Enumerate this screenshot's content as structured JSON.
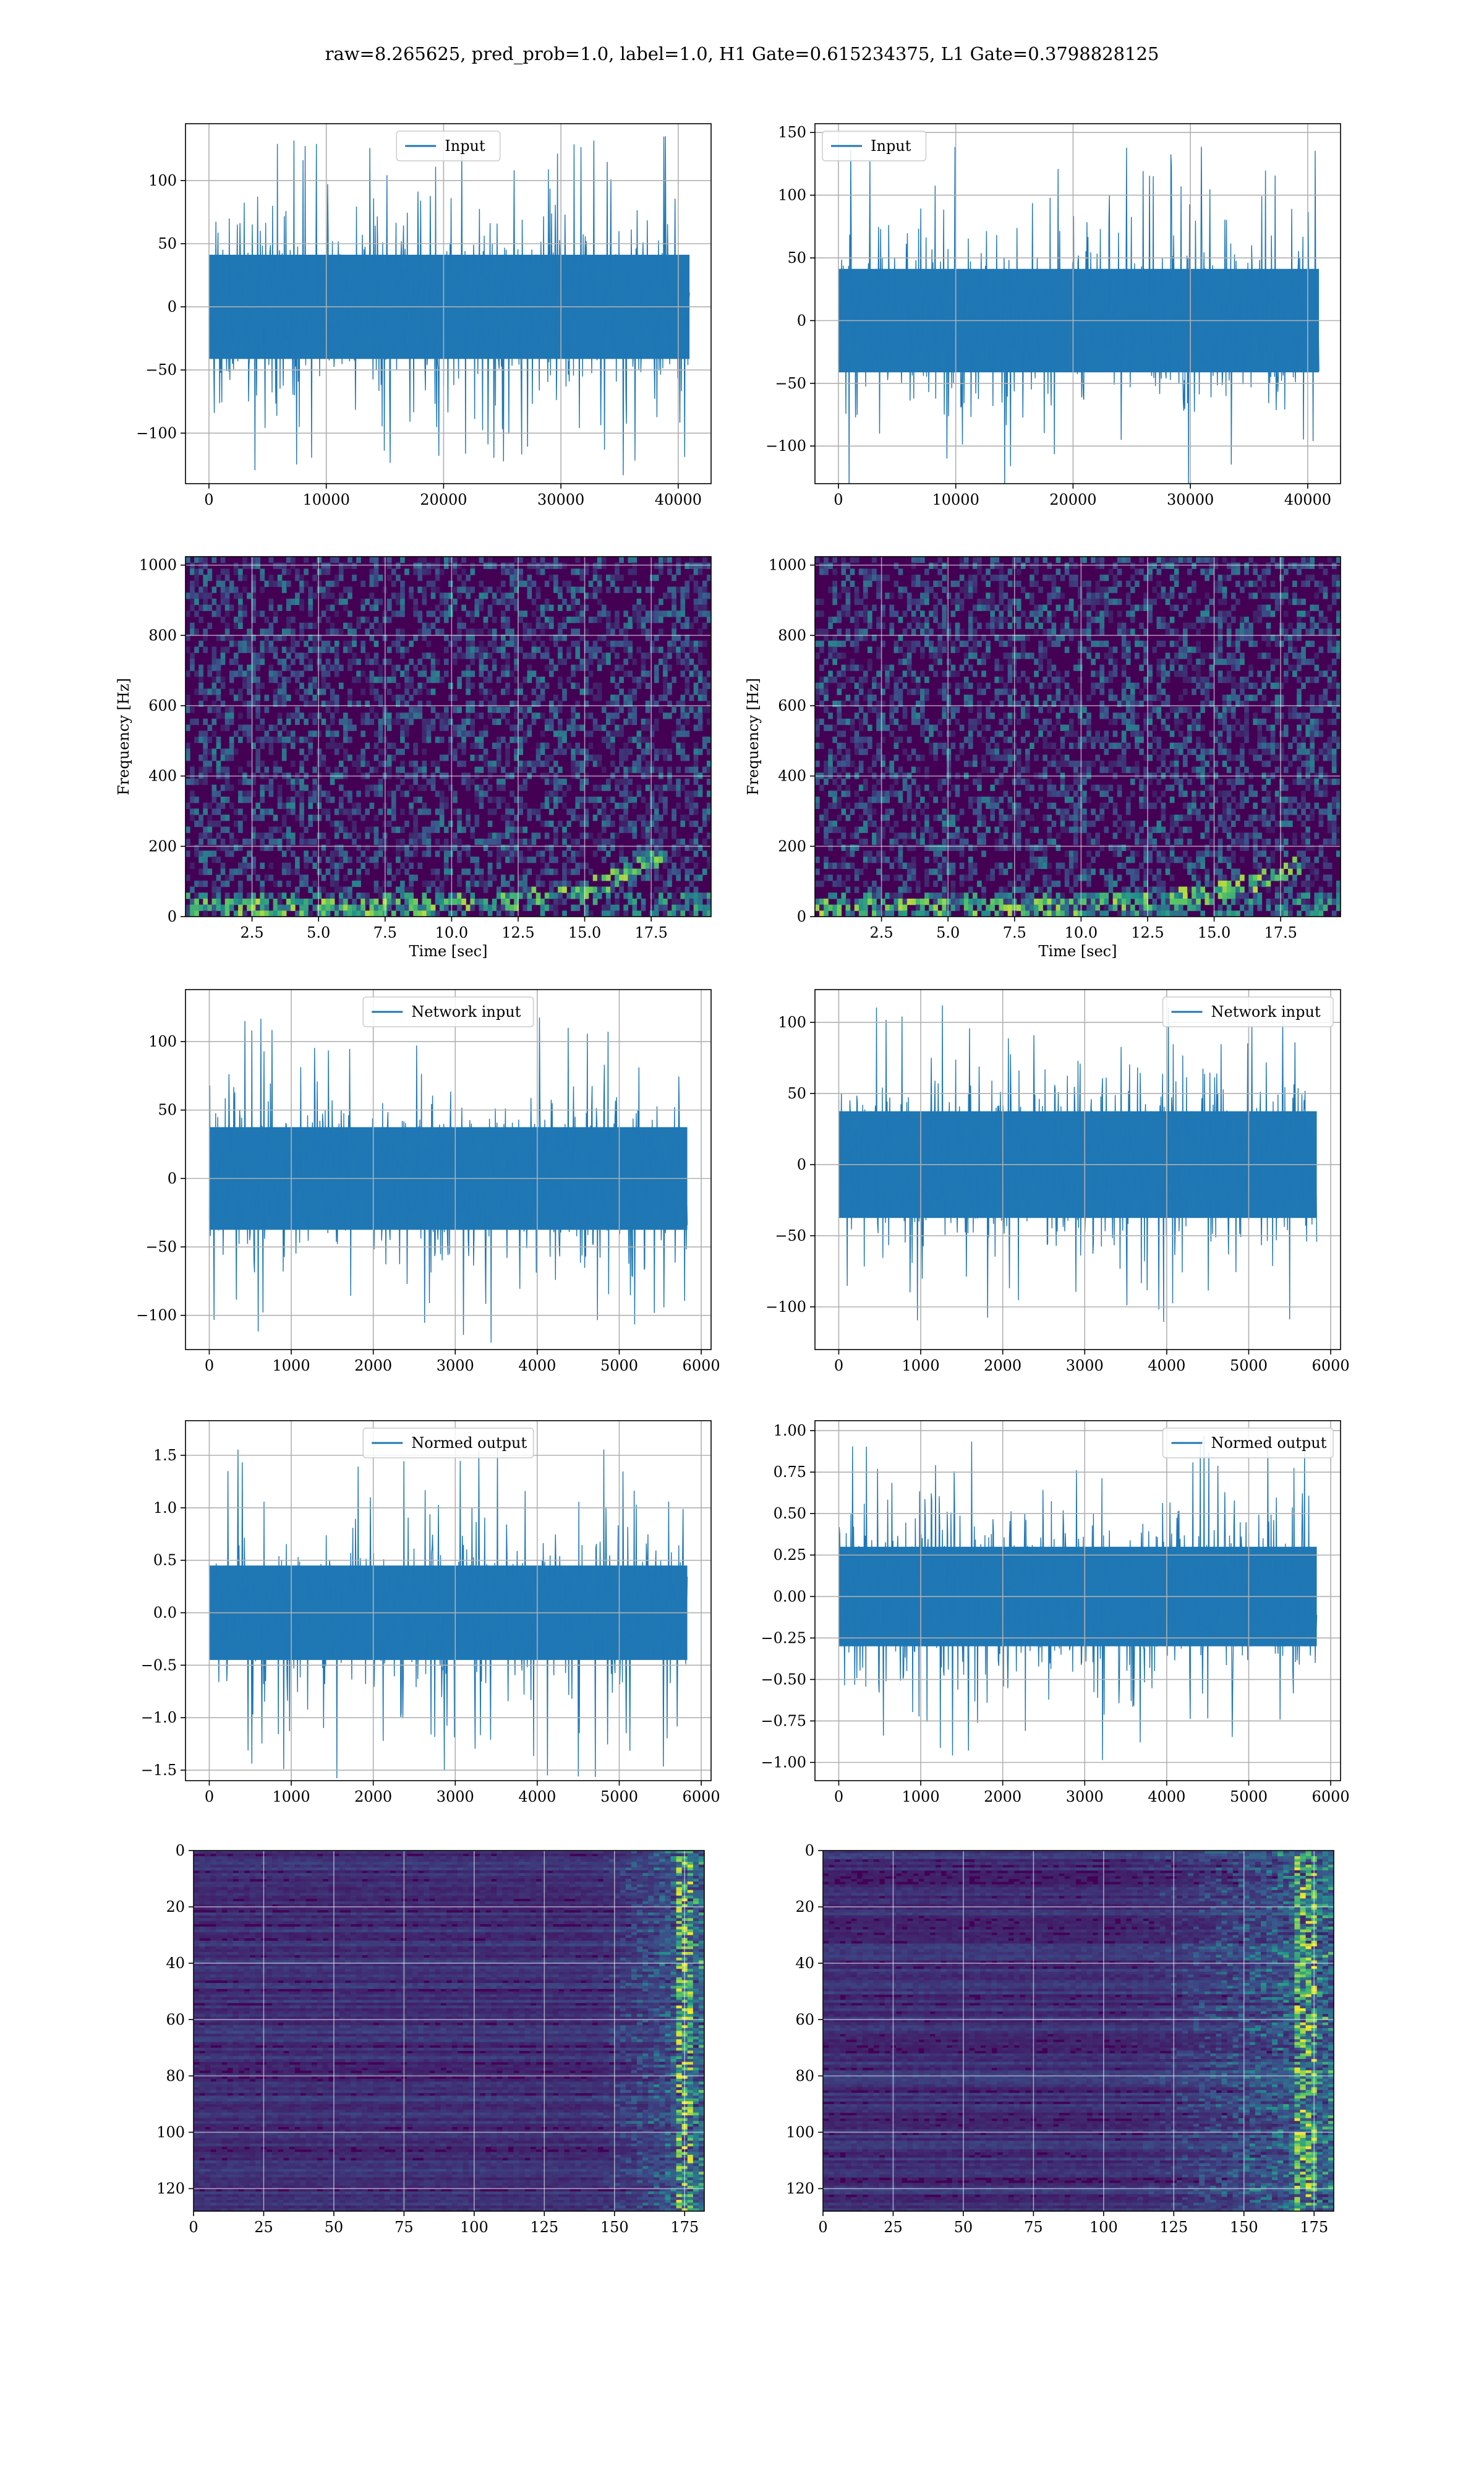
{
  "figure": {
    "title": "raw=8.265625, pred_prob=1.0, label=1.0, H1 Gate=0.615234375, L1 Gate=0.3798828125"
  },
  "colors": {
    "series": "#1f77b4",
    "grid": "#b0b0b0",
    "viridis_low": "#440154",
    "viridis_mid": "#31688e",
    "viridis_high": "#fde725"
  },
  "chart_data": [
    {
      "id": "h1-input",
      "type": "line",
      "legend": [
        "Input"
      ],
      "legend_loc": "upper center",
      "series": [
        {
          "name": "Input",
          "x_range": [
            0,
            40960
          ],
          "amp_typical": 55,
          "amp_max": 135,
          "seed": 11
        }
      ],
      "xlim": [
        -2000,
        42800
      ],
      "ylim": [
        -140,
        145
      ],
      "xticks": [
        0,
        10000,
        20000,
        30000,
        40000
      ],
      "xticklabels": [
        "0",
        "10000",
        "20000",
        "30000",
        "40000"
      ],
      "yticks": [
        -100,
        -50,
        0,
        50,
        100
      ],
      "yticklabels": [
        "−100",
        "−50",
        "0",
        "50",
        "100"
      ],
      "grid": true
    },
    {
      "id": "l1-input",
      "type": "line",
      "legend": [
        "Input"
      ],
      "legend_loc": "upper left",
      "series": [
        {
          "name": "Input",
          "x_range": [
            0,
            40960
          ],
          "amp_typical": 55,
          "amp_max": 140,
          "seed": 23
        }
      ],
      "xlim": [
        -2000,
        42800
      ],
      "ylim": [
        -130,
        157
      ],
      "xticks": [
        0,
        10000,
        20000,
        30000,
        40000
      ],
      "xticklabels": [
        "0",
        "10000",
        "20000",
        "30000",
        "40000"
      ],
      "yticks": [
        -100,
        -50,
        0,
        50,
        100,
        150
      ],
      "yticklabels": [
        "−100",
        "−50",
        "0",
        "50",
        "100",
        "150"
      ],
      "grid": true
    },
    {
      "id": "h1-spectrogram",
      "type": "heatmap",
      "xlabel": "Time [sec]",
      "ylabel": "Frequency [Hz]",
      "xlim": [
        0,
        19.75
      ],
      "ylim": [
        0,
        1024
      ],
      "xticks": [
        2.5,
        5.0,
        7.5,
        10.0,
        12.5,
        15.0,
        17.5
      ],
      "xticklabels": [
        "2.5",
        "5.0",
        "7.5",
        "10.0",
        "12.5",
        "15.0",
        "17.5"
      ],
      "yticks": [
        0,
        200,
        400,
        600,
        800,
        1000
      ],
      "yticklabels": [
        "0",
        "200",
        "400",
        "600",
        "800",
        "1000"
      ],
      "chirp": {
        "t_end": 18.0,
        "f_start": 30,
        "f_end": 180
      },
      "grid": true
    },
    {
      "id": "l1-spectrogram",
      "type": "heatmap",
      "xlabel": "Time [sec]",
      "ylabel": "Frequency [Hz]",
      "xlim": [
        0,
        19.75
      ],
      "ylim": [
        0,
        1024
      ],
      "xticks": [
        2.5,
        5.0,
        7.5,
        10.0,
        12.5,
        15.0,
        17.5
      ],
      "xticklabels": [
        "2.5",
        "5.0",
        "7.5",
        "10.0",
        "12.5",
        "15.0",
        "17.5"
      ],
      "yticks": [
        0,
        200,
        400,
        600,
        800,
        1000
      ],
      "yticklabels": [
        "0",
        "200",
        "400",
        "600",
        "800",
        "1000"
      ],
      "chirp": {
        "t_end": 18.2,
        "f_start": 30,
        "f_end": 150
      },
      "grid": true
    },
    {
      "id": "h1-network-input",
      "type": "line",
      "legend": [
        "Network input"
      ],
      "legend_loc": "upper center",
      "series": [
        {
          "name": "Network input",
          "x_range": [
            0,
            5830
          ],
          "amp_typical": 50,
          "amp_max": 120,
          "seed": 37
        }
      ],
      "xlim": [
        -290,
        6120
      ],
      "ylim": [
        -125,
        138
      ],
      "xticks": [
        0,
        1000,
        2000,
        3000,
        4000,
        5000,
        6000
      ],
      "xticklabels": [
        "0",
        "1000",
        "2000",
        "3000",
        "4000",
        "5000",
        "6000"
      ],
      "yticks": [
        -100,
        -50,
        0,
        50,
        100
      ],
      "yticklabels": [
        "−100",
        "−50",
        "0",
        "50",
        "100"
      ],
      "grid": true
    },
    {
      "id": "l1-network-input",
      "type": "line",
      "legend": [
        "Network input"
      ],
      "legend_loc": "upper right",
      "series": [
        {
          "name": "Network input",
          "x_range": [
            0,
            5830
          ],
          "amp_typical": 50,
          "amp_max": 115,
          "seed": 41
        }
      ],
      "xlim": [
        -290,
        6120
      ],
      "ylim": [
        -130,
        123
      ],
      "xticks": [
        0,
        1000,
        2000,
        3000,
        4000,
        5000,
        6000
      ],
      "xticklabels": [
        "0",
        "1000",
        "2000",
        "3000",
        "4000",
        "5000",
        "6000"
      ],
      "yticks": [
        -100,
        -50,
        0,
        50,
        100
      ],
      "yticklabels": [
        "−100",
        "−50",
        "0",
        "50",
        "100"
      ],
      "grid": true
    },
    {
      "id": "h1-normed-output",
      "type": "line",
      "legend": [
        "Normed output"
      ],
      "legend_loc": "upper center",
      "series": [
        {
          "name": "Normed output",
          "x_range": [
            0,
            5830
          ],
          "amp_typical": 0.6,
          "amp_max": 1.62,
          "seed": 53
        }
      ],
      "xlim": [
        -290,
        6120
      ],
      "ylim": [
        -1.6,
        1.83
      ],
      "xticks": [
        0,
        1000,
        2000,
        3000,
        4000,
        5000,
        6000
      ],
      "xticklabels": [
        "0",
        "1000",
        "2000",
        "3000",
        "4000",
        "5000",
        "6000"
      ],
      "yticks": [
        -1.5,
        -1.0,
        -0.5,
        0.0,
        0.5,
        1.0,
        1.5
      ],
      "yticklabels": [
        "−1.5",
        "−1.0",
        "−0.5",
        "0.0",
        "0.5",
        "1.0",
        "1.5"
      ],
      "grid": true
    },
    {
      "id": "l1-normed-output",
      "type": "line",
      "legend": [
        "Normed output"
      ],
      "legend_loc": "upper right",
      "series": [
        {
          "name": "Normed output",
          "x_range": [
            0,
            5830
          ],
          "amp_typical": 0.4,
          "amp_max": 1.0,
          "seed": 67
        }
      ],
      "xlim": [
        -290,
        6120
      ],
      "ylim": [
        -1.11,
        1.06
      ],
      "xticks": [
        0,
        1000,
        2000,
        3000,
        4000,
        5000,
        6000
      ],
      "xticklabels": [
        "0",
        "1000",
        "2000",
        "3000",
        "4000",
        "5000",
        "6000"
      ],
      "yticks": [
        -1.0,
        -0.75,
        -0.5,
        -0.25,
        0.0,
        0.25,
        0.5,
        0.75,
        1.0
      ],
      "yticklabels": [
        "−1.00",
        "−0.75",
        "−0.50",
        "−0.25",
        "0.00",
        "0.25",
        "0.50",
        "0.75",
        "1.00"
      ],
      "grid": true
    },
    {
      "id": "h1-feature-map",
      "type": "heatmap",
      "xlim": [
        0,
        182
      ],
      "ylim": [
        128,
        0
      ],
      "xticks": [
        0,
        25,
        50,
        75,
        100,
        125,
        150,
        175
      ],
      "xticklabels": [
        "0",
        "25",
        "50",
        "75",
        "100",
        "125",
        "150",
        "175"
      ],
      "yticks": [
        0,
        20,
        40,
        60,
        80,
        100,
        120
      ],
      "yticklabels": [
        "0",
        "20",
        "40",
        "60",
        "80",
        "100",
        "120"
      ],
      "activity_start": 140,
      "hot_column": 175,
      "grid": true
    },
    {
      "id": "l1-feature-map",
      "type": "heatmap",
      "xlim": [
        0,
        182
      ],
      "ylim": [
        128,
        0
      ],
      "xticks": [
        0,
        25,
        50,
        75,
        100,
        125,
        150,
        175
      ],
      "xticklabels": [
        "0",
        "25",
        "50",
        "75",
        "100",
        "125",
        "150",
        "175"
      ],
      "yticks": [
        0,
        20,
        40,
        60,
        80,
        100,
        120
      ],
      "yticklabels": [
        "0",
        "20",
        "40",
        "60",
        "80",
        "100",
        "120"
      ],
      "activity_start": 105,
      "hot_column": 172,
      "grid": true
    }
  ]
}
